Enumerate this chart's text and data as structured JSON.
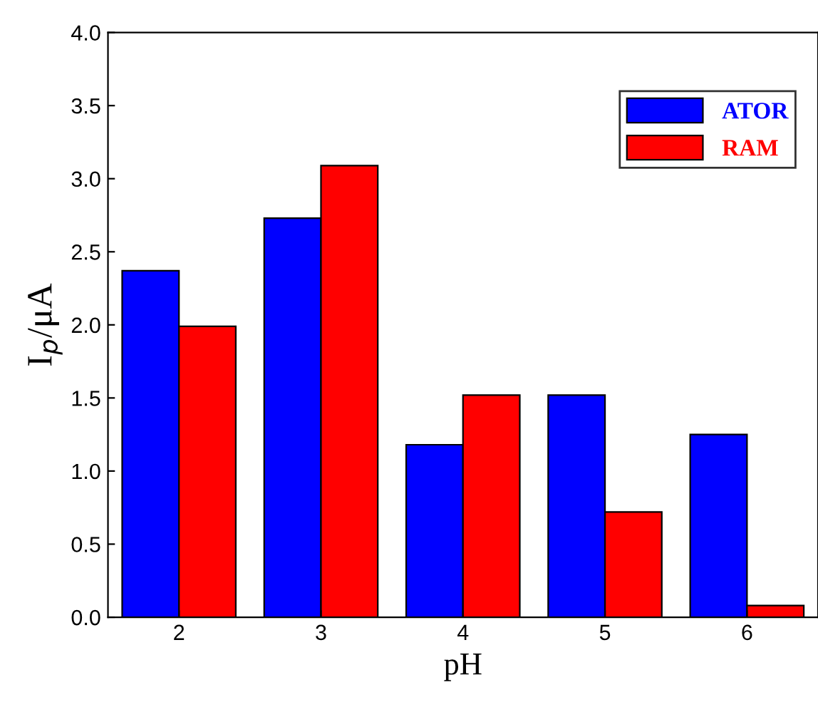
{
  "chart_data": {
    "type": "bar",
    "xlabel": "pH",
    "ylabel": "I$_{p}$/μA",
    "categories": [
      "2",
      "3",
      "4",
      "5",
      "6"
    ],
    "series": [
      {
        "name": "ATOR",
        "color": "#0000ff",
        "values": [
          2.37,
          2.73,
          1.18,
          1.52,
          1.25
        ]
      },
      {
        "name": "RAM",
        "color": "#ff0000",
        "values": [
          1.99,
          3.09,
          1.52,
          0.72,
          0.08
        ]
      }
    ],
    "ylim": [
      0,
      4.0
    ],
    "yticks": [
      {
        "value": 0,
        "label": "0.0"
      },
      {
        "value": 0.5,
        "label": "0.5"
      },
      {
        "value": 1,
        "label": "1.0"
      },
      {
        "value": 1.5,
        "label": "1.5"
      },
      {
        "value": 2,
        "label": "2.0"
      },
      {
        "value": 2.5,
        "label": "2.5"
      },
      {
        "value": 3,
        "label": "3.0"
      },
      {
        "value": 3.5,
        "label": "3.5"
      },
      {
        "value": 4,
        "label": "4.0"
      }
    ],
    "grid": false,
    "legend": "top right"
  }
}
